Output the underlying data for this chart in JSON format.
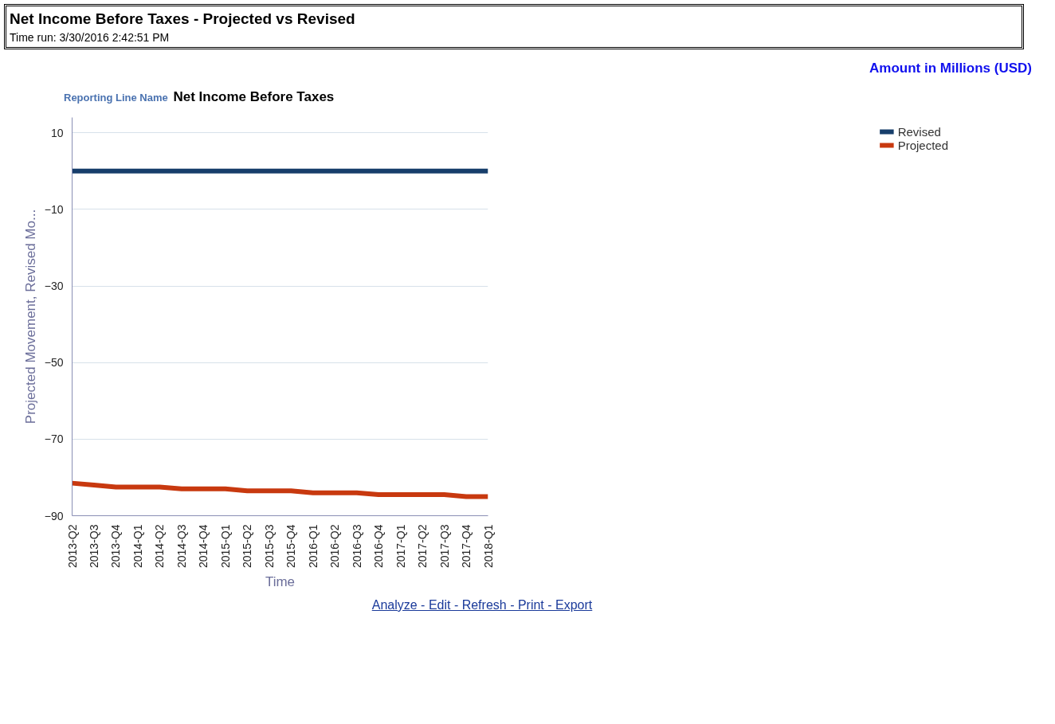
{
  "chart_data": {
    "type": "line",
    "title": "Net Income Before Taxes - Projected vs Revised",
    "subtitle": "Time run: 3/30/2016 2:42:51 PM",
    "xlabel": "Time",
    "ylabel": "Projected Movement, Revised Mo...",
    "annotations": [
      "Amount in Millions (USD)",
      "Reporting Line Name",
      "Net Income Before Taxes",
      "Analyze - Edit - Refresh - Print - Export"
    ],
    "categories": [
      "2013-Q2",
      "2013-Q3",
      "2013-Q4",
      "2014-Q1",
      "2014-Q2",
      "2014-Q3",
      "2014-Q4",
      "2015-Q1",
      "2015-Q2",
      "2015-Q3",
      "2015-Q4",
      "2016-Q1",
      "2016-Q2",
      "2016-Q3",
      "2016-Q4",
      "2017-Q1",
      "2017-Q2",
      "2017-Q3",
      "2017-Q4",
      "2018-Q1"
    ],
    "series": [
      {
        "name": "Revised",
        "color": "#173e6b",
        "values": [
          0,
          0,
          0,
          0,
          0,
          0,
          0,
          0,
          0,
          0,
          0,
          0,
          0,
          0,
          0,
          0,
          0,
          0,
          0,
          0
        ]
      },
      {
        "name": "Projected",
        "color": "#c8390f",
        "values": [
          -81.5,
          -82,
          -82.5,
          -82.5,
          -82.5,
          -83,
          -83,
          -83,
          -83.5,
          -83.5,
          -83.5,
          -84,
          -84,
          -84,
          -84.5,
          -84.5,
          -84.5,
          -84.5,
          -85,
          -85
        ]
      }
    ],
    "ylim": [
      -90,
      14
    ],
    "yticks": [
      10,
      -10,
      -30,
      -50,
      -70,
      -90
    ],
    "grid": "y",
    "legend": "right",
    "marker": "none",
    "line_style": "solid"
  }
}
